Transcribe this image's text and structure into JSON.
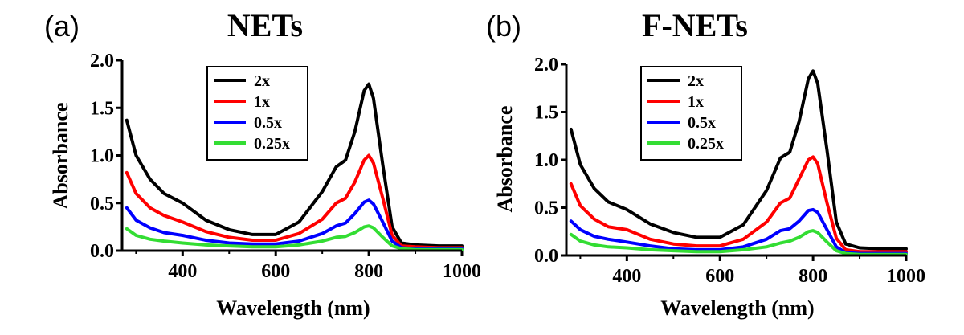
{
  "chart_data": [
    {
      "type": "line",
      "panel_label": "(a)",
      "title": "NETs",
      "xlabel": "Wavelength (nm)",
      "ylabel": "Absorbance",
      "xlim": [
        270,
        1000
      ],
      "ylim": [
        0,
        2.0
      ],
      "xticks": [
        400,
        600,
        800,
        1000
      ],
      "yticks": [
        0.0,
        0.5,
        1.0,
        1.5,
        2.0
      ],
      "xtick_labels": [
        "400",
        "600",
        "800",
        "1000"
      ],
      "ytick_labels": [
        "0.0",
        "0.5",
        "1.0",
        "1.5",
        "2.0"
      ],
      "legend_position": "top-center",
      "grid": false,
      "x": [
        280,
        300,
        330,
        360,
        400,
        450,
        500,
        550,
        600,
        650,
        700,
        730,
        750,
        770,
        790,
        800,
        810,
        830,
        850,
        870,
        900,
        950,
        1000
      ],
      "series": [
        {
          "name": "2x",
          "color": "#000000",
          "values": [
            1.37,
            1.0,
            0.75,
            0.6,
            0.5,
            0.32,
            0.22,
            0.17,
            0.17,
            0.3,
            0.62,
            0.88,
            0.95,
            1.25,
            1.68,
            1.75,
            1.6,
            0.9,
            0.25,
            0.08,
            0.06,
            0.05,
            0.05
          ]
        },
        {
          "name": "1x",
          "color": "#ff0000",
          "values": [
            0.82,
            0.6,
            0.45,
            0.37,
            0.3,
            0.2,
            0.14,
            0.11,
            0.11,
            0.18,
            0.33,
            0.5,
            0.55,
            0.72,
            0.95,
            1.0,
            0.92,
            0.55,
            0.16,
            0.05,
            0.04,
            0.03,
            0.03
          ]
        },
        {
          "name": "0.5x",
          "color": "#0000ff",
          "values": [
            0.45,
            0.32,
            0.24,
            0.19,
            0.16,
            0.11,
            0.08,
            0.07,
            0.07,
            0.1,
            0.18,
            0.26,
            0.29,
            0.39,
            0.51,
            0.53,
            0.49,
            0.3,
            0.1,
            0.03,
            0.02,
            0.02,
            0.02
          ]
        },
        {
          "name": "0.25x",
          "color": "#33dd33",
          "values": [
            0.23,
            0.16,
            0.12,
            0.1,
            0.08,
            0.06,
            0.05,
            0.04,
            0.04,
            0.06,
            0.1,
            0.14,
            0.15,
            0.19,
            0.25,
            0.26,
            0.24,
            0.14,
            0.05,
            0.02,
            0.01,
            0.01,
            0.01
          ]
        }
      ]
    },
    {
      "type": "line",
      "panel_label": "(b)",
      "title": "F-NETs",
      "xlabel": "Wavelength (nm)",
      "ylabel": "Absorbance",
      "xlim": [
        270,
        1000
      ],
      "ylim": [
        0,
        2.0
      ],
      "xticks": [
        400,
        600,
        800,
        1000
      ],
      "yticks": [
        0.0,
        0.5,
        1.0,
        1.5,
        2.0
      ],
      "xtick_labels": [
        "400",
        "600",
        "800",
        "1000"
      ],
      "ytick_labels": [
        "0.0",
        "0.5",
        "1.0",
        "1.5",
        "2.0"
      ],
      "legend_position": "top-center",
      "grid": false,
      "x": [
        280,
        300,
        330,
        360,
        400,
        450,
        500,
        550,
        600,
        650,
        700,
        730,
        750,
        770,
        790,
        800,
        810,
        830,
        850,
        870,
        900,
        950,
        1000
      ],
      "series": [
        {
          "name": "2x",
          "color": "#000000",
          "values": [
            1.32,
            0.95,
            0.7,
            0.56,
            0.48,
            0.33,
            0.24,
            0.19,
            0.19,
            0.32,
            0.68,
            1.02,
            1.08,
            1.4,
            1.85,
            1.93,
            1.8,
            1.1,
            0.35,
            0.12,
            0.08,
            0.07,
            0.07
          ]
        },
        {
          "name": "1x",
          "color": "#ff0000",
          "values": [
            0.75,
            0.52,
            0.38,
            0.3,
            0.27,
            0.17,
            0.12,
            0.1,
            0.1,
            0.17,
            0.35,
            0.55,
            0.6,
            0.8,
            1.0,
            1.03,
            0.96,
            0.55,
            0.18,
            0.06,
            0.04,
            0.04,
            0.04
          ]
        },
        {
          "name": "0.5x",
          "color": "#0000ff",
          "values": [
            0.36,
            0.27,
            0.2,
            0.17,
            0.14,
            0.1,
            0.07,
            0.06,
            0.06,
            0.09,
            0.17,
            0.26,
            0.28,
            0.36,
            0.47,
            0.48,
            0.45,
            0.27,
            0.09,
            0.03,
            0.02,
            0.02,
            0.02
          ]
        },
        {
          "name": "0.25x",
          "color": "#33dd33",
          "values": [
            0.22,
            0.15,
            0.11,
            0.09,
            0.08,
            0.06,
            0.05,
            0.04,
            0.04,
            0.06,
            0.09,
            0.13,
            0.15,
            0.19,
            0.25,
            0.26,
            0.24,
            0.14,
            0.05,
            0.02,
            0.01,
            0.01,
            0.01
          ]
        }
      ]
    }
  ]
}
